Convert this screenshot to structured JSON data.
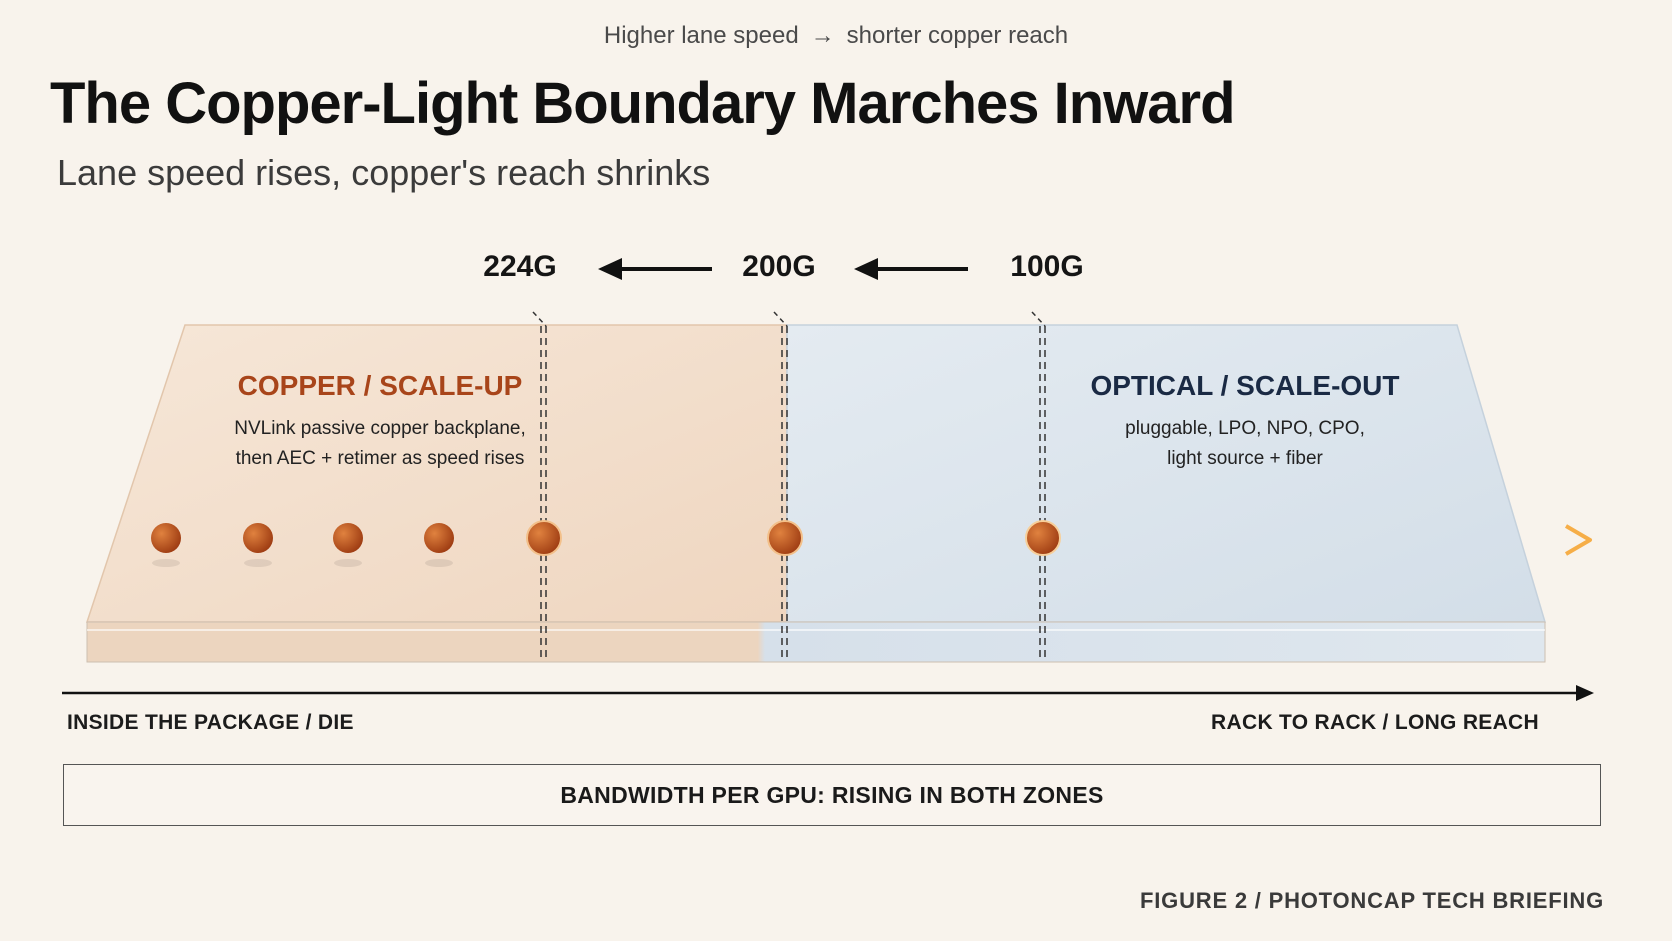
{
  "kicker": {
    "left": "Higher lane speed",
    "arrow": "→",
    "right": "shorter copper reach"
  },
  "title": "The Copper-Light Boundary Marches Inward",
  "subtitle": "Lane speed rises, copper's reach shrinks",
  "speeds": [
    "224G",
    "200G",
    "100G"
  ],
  "copper_zone": {
    "title": "COPPER / SCALE-UP",
    "desc_line1": "NVLink passive copper backplane,",
    "desc_line2": "then AEC + retimer as speed rises"
  },
  "optical_zone": {
    "title": "OPTICAL / SCALE-OUT",
    "desc_line1": "pluggable, LPO, NPO, CPO,",
    "desc_line2": "light source + fiber"
  },
  "axis": {
    "left": "INSIDE THE PACKAGE / DIE",
    "right": "RACK TO RACK / LONG REACH"
  },
  "bandwidth_note": "BANDWIDTH PER GPU: RISING IN BOTH ZONES",
  "footer": "FIGURE  2  /  PHOTONCAP TECH BRIEFING",
  "colors": {
    "copper": "#a8451a",
    "copper_node": "#c4571f",
    "optical_title": "#1a2a44",
    "optical_line": "#f0a040",
    "copper_region": "#f2ddc9",
    "optical_region": "#dde6ee"
  }
}
